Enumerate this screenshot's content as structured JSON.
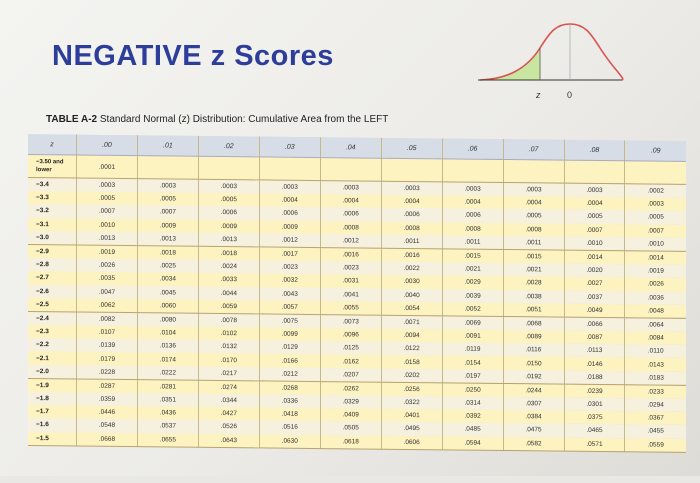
{
  "title": "NEGATIVE z Scores",
  "curve": {
    "z_label": "z",
    "zero_label": "0",
    "fill_color": "#c8e6a0",
    "curve_color": "#d9534f"
  },
  "caption": {
    "table_id": "TABLE A-2",
    "text": "Standard Normal (z) Distribution: Cumulative Area from the LEFT"
  },
  "table": {
    "headers": [
      "z",
      ".00",
      ".01",
      ".02",
      ".03",
      ".04",
      ".05",
      ".06",
      ".07",
      ".08",
      ".09"
    ],
    "rows": [
      {
        "z": "−3.50 and lower",
        "values": [
          ".0001",
          "",
          "",
          "",
          "",
          "",
          "",
          "",
          "",
          ""
        ]
      },
      {
        "z": "−3.4",
        "values": [
          ".0003",
          ".0003",
          ".0003",
          ".0003",
          ".0003",
          ".0003",
          ".0003",
          ".0003",
          ".0003",
          ".0002"
        ]
      },
      {
        "z": "−3.3",
        "values": [
          ".0005",
          ".0005",
          ".0005",
          ".0004",
          ".0004",
          ".0004",
          ".0004",
          ".0004",
          ".0004",
          ".0003"
        ]
      },
      {
        "z": "−3.2",
        "values": [
          ".0007",
          ".0007",
          ".0006",
          ".0006",
          ".0006",
          ".0006",
          ".0006",
          ".0005",
          ".0005",
          ".0005"
        ]
      },
      {
        "z": "−3.1",
        "values": [
          ".0010",
          ".0009",
          ".0009",
          ".0009",
          ".0008",
          ".0008",
          ".0008",
          ".0008",
          ".0007",
          ".0007"
        ]
      },
      {
        "z": "−3.0",
        "values": [
          ".0013",
          ".0013",
          ".0013",
          ".0012",
          ".0012",
          ".0011",
          ".0011",
          ".0011",
          ".0010",
          ".0010"
        ]
      },
      {
        "z": "−2.9",
        "values": [
          ".0019",
          ".0018",
          ".0018",
          ".0017",
          ".0016",
          ".0016",
          ".0015",
          ".0015",
          ".0014",
          ".0014"
        ]
      },
      {
        "z": "−2.8",
        "values": [
          ".0026",
          ".0025",
          ".0024",
          ".0023",
          ".0023",
          ".0022",
          ".0021",
          ".0021",
          ".0020",
          ".0019"
        ]
      },
      {
        "z": "−2.7",
        "values": [
          ".0035",
          ".0034",
          ".0033",
          ".0032",
          ".0031",
          ".0030",
          ".0029",
          ".0028",
          ".0027",
          ".0026"
        ]
      },
      {
        "z": "−2.6",
        "values": [
          ".0047",
          ".0045",
          ".0044",
          ".0043",
          ".0041",
          ".0040",
          ".0039",
          ".0038",
          ".0037",
          ".0036"
        ]
      },
      {
        "z": "−2.5",
        "values": [
          ".0062",
          ".0060",
          ".0059",
          ".0057",
          ".0055",
          ".0054",
          ".0052",
          ".0051",
          ".0049",
          ".0048"
        ]
      },
      {
        "z": "−2.4",
        "values": [
          ".0082",
          ".0080",
          ".0078",
          ".0075",
          ".0073",
          ".0071",
          ".0069",
          ".0068",
          ".0066",
          ".0064"
        ]
      },
      {
        "z": "−2.3",
        "values": [
          ".0107",
          ".0104",
          ".0102",
          ".0099",
          ".0096",
          ".0094",
          ".0091",
          ".0089",
          ".0087",
          ".0084"
        ]
      },
      {
        "z": "−2.2",
        "values": [
          ".0139",
          ".0136",
          ".0132",
          ".0129",
          ".0125",
          ".0122",
          ".0119",
          ".0116",
          ".0113",
          ".0110"
        ]
      },
      {
        "z": "−2.1",
        "values": [
          ".0179",
          ".0174",
          ".0170",
          ".0166",
          ".0162",
          ".0158",
          ".0154",
          ".0150",
          ".0146",
          ".0143"
        ]
      },
      {
        "z": "−2.0",
        "values": [
          ".0228",
          ".0222",
          ".0217",
          ".0212",
          ".0207",
          ".0202",
          ".0197",
          ".0192",
          ".0188",
          ".0183"
        ]
      },
      {
        "z": "−1.9",
        "values": [
          ".0287",
          ".0281",
          ".0274",
          ".0268",
          ".0262",
          ".0256",
          ".0250",
          ".0244",
          ".0239",
          ".0233"
        ]
      },
      {
        "z": "−1.8",
        "values": [
          ".0359",
          ".0351",
          ".0344",
          ".0336",
          ".0329",
          ".0322",
          ".0314",
          ".0307",
          ".0301",
          ".0294"
        ]
      },
      {
        "z": "−1.7",
        "values": [
          ".0446",
          ".0436",
          ".0427",
          ".0418",
          ".0409",
          ".0401",
          ".0392",
          ".0384",
          ".0375",
          ".0367"
        ]
      },
      {
        "z": "−1.6",
        "values": [
          ".0548",
          ".0537",
          ".0526",
          ".0516",
          ".0505",
          ".0495",
          ".0485",
          ".0475",
          ".0465",
          ".0455"
        ]
      },
      {
        "z": "−1.5",
        "values": [
          ".0668",
          ".0655",
          ".0643",
          ".0630",
          ".0618",
          ".0606",
          ".0594",
          ".0582",
          ".0571",
          ".0559"
        ]
      }
    ]
  }
}
